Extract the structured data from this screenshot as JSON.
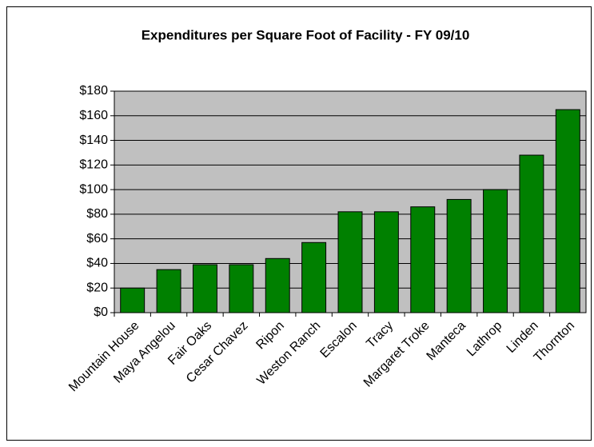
{
  "chart_data": {
    "type": "bar",
    "title": "Expenditures per Square Foot of Facility - FY 09/10",
    "categories": [
      "Mountain House",
      "Maya Angelou",
      "Fair Oaks",
      "Cesar Chavez",
      "Ripon",
      "Weston Ranch",
      "Escalon",
      "Tracy",
      "Margaret Troke",
      "Manteca",
      "Lathrop",
      "Linden",
      "Thornton"
    ],
    "values": [
      20,
      35,
      39,
      39,
      44,
      57,
      82,
      82,
      86,
      92,
      100,
      128,
      165
    ],
    "color": "#008000",
    "ylim": [
      0,
      180
    ],
    "yticks": [
      {
        "value": 0,
        "label": "$0"
      },
      {
        "value": 20,
        "label": "$20"
      },
      {
        "value": 40,
        "label": "$40"
      },
      {
        "value": 60,
        "label": "$60"
      },
      {
        "value": 80,
        "label": "$80"
      },
      {
        "value": 100,
        "label": "$100"
      },
      {
        "value": 120,
        "label": "$120"
      },
      {
        "value": 140,
        "label": "$140"
      },
      {
        "value": 160,
        "label": "$160"
      },
      {
        "value": 180,
        "label": "$180"
      }
    ],
    "grid": true
  }
}
